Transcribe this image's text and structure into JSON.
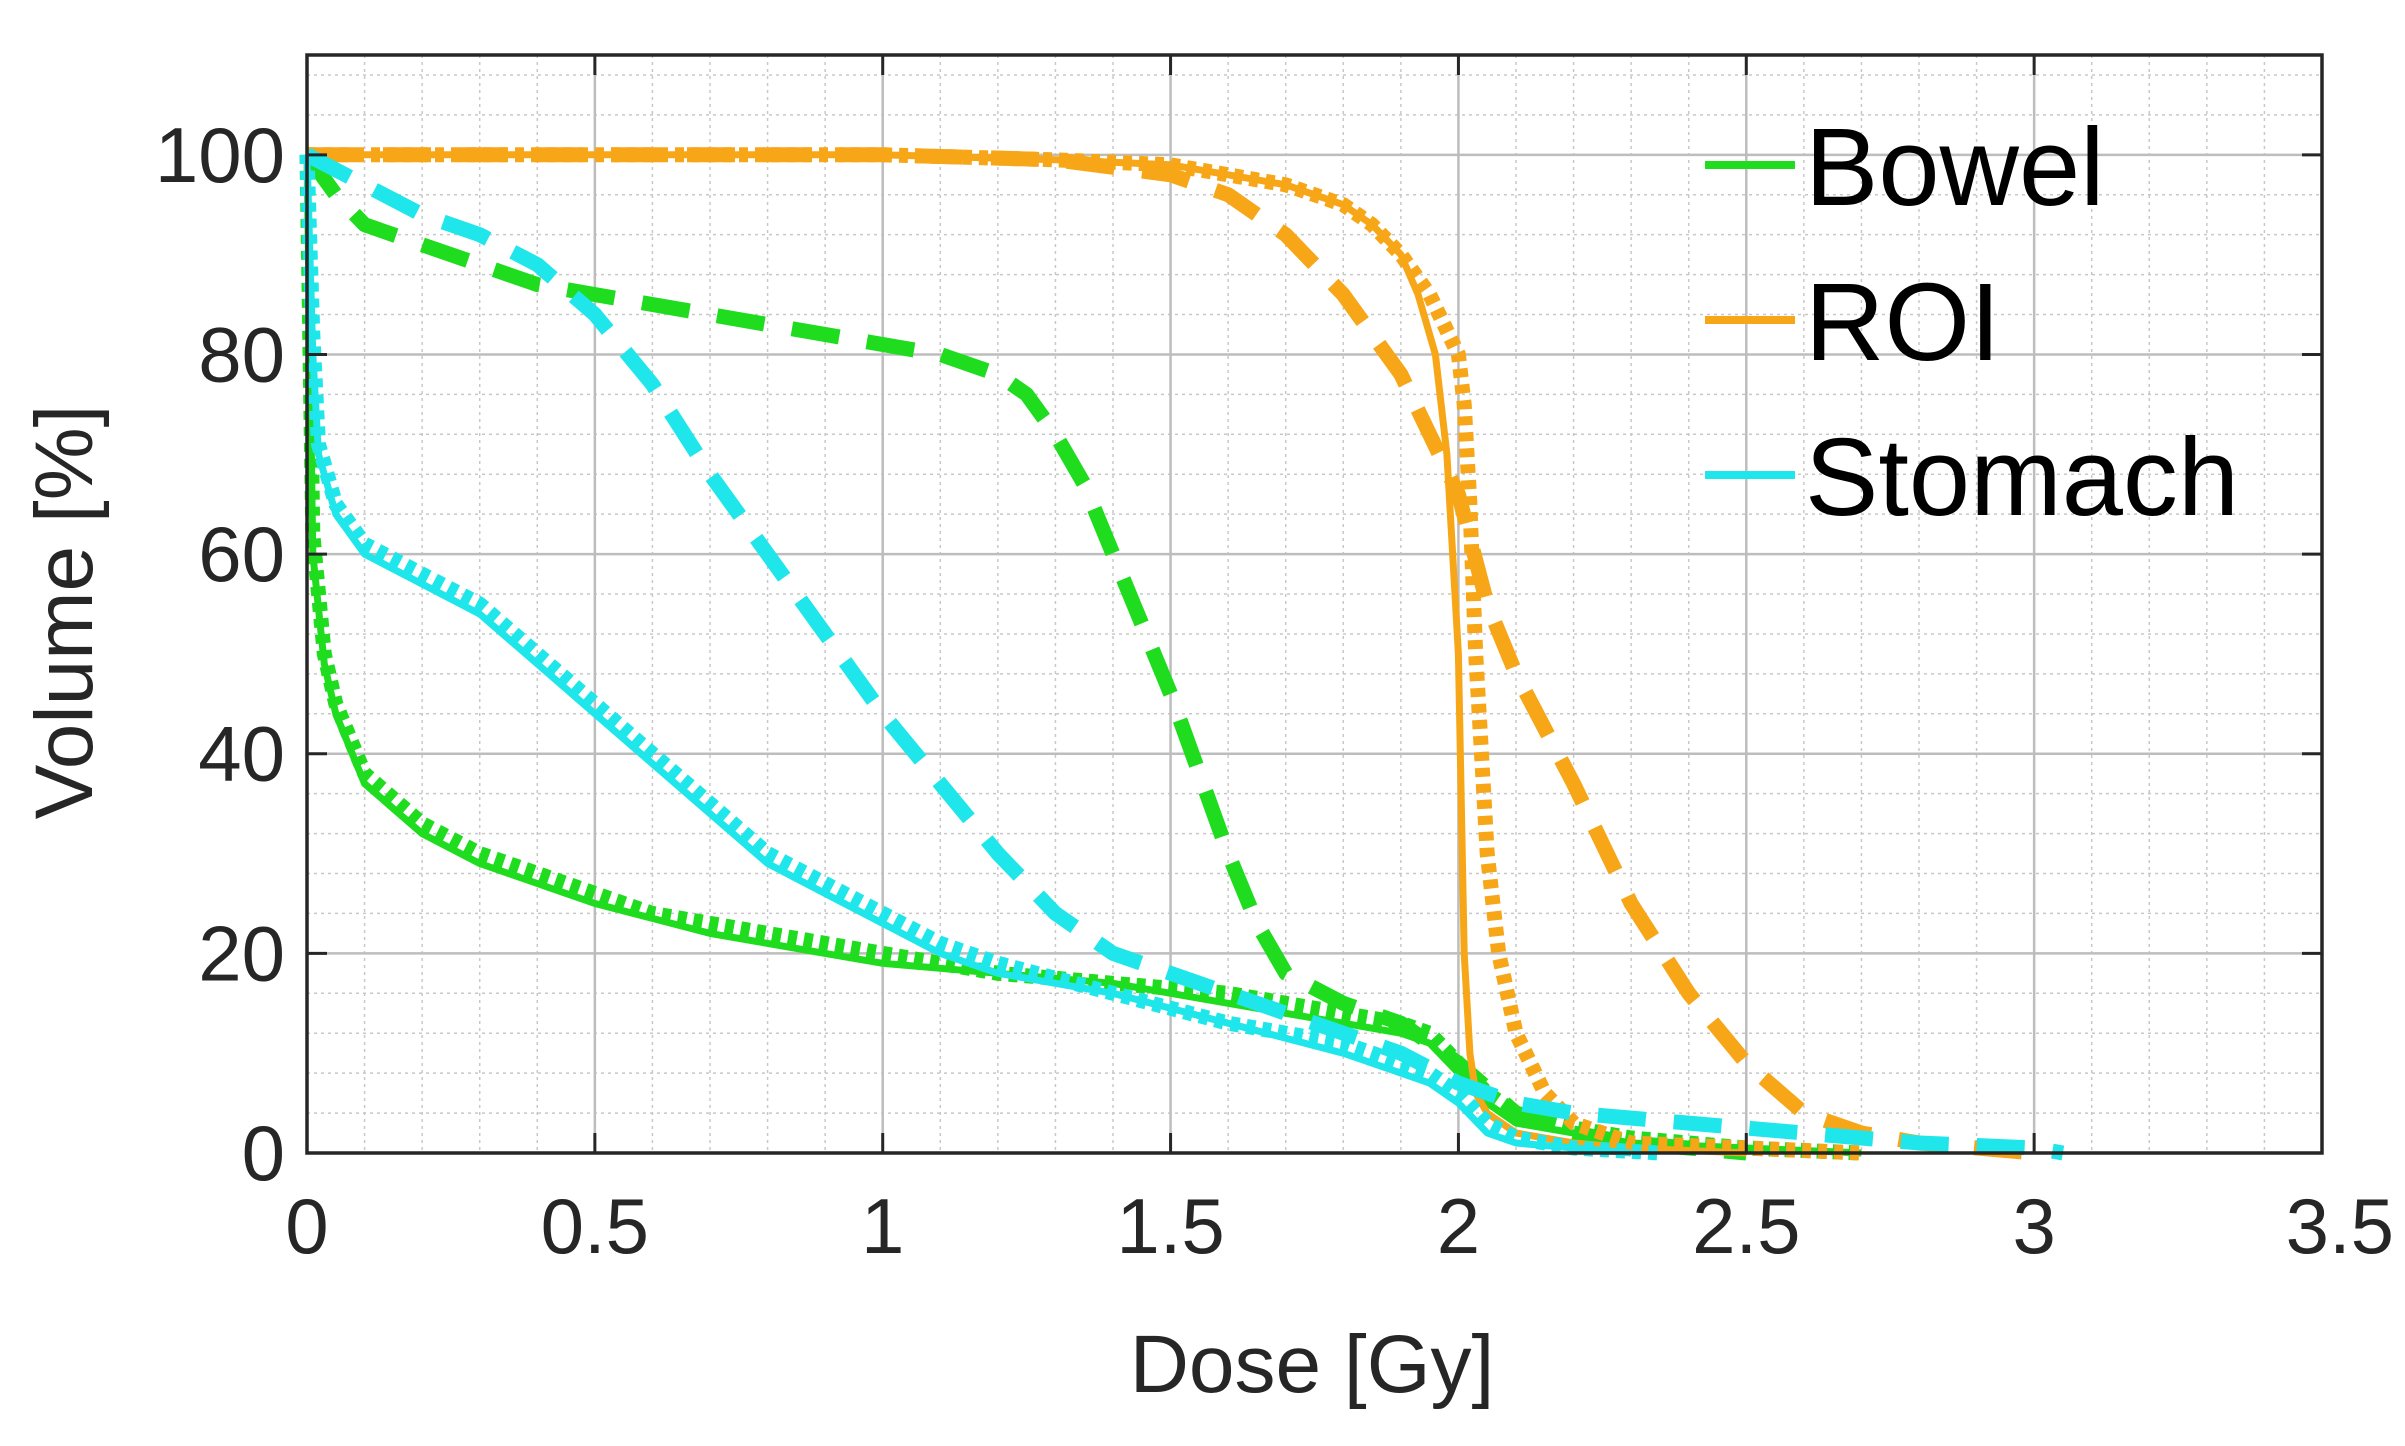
{
  "chart_data": {
    "type": "line",
    "title": "",
    "xlabel": "Dose [Gy]",
    "ylabel": "Volume [%]",
    "xlim": [
      0,
      3.5
    ],
    "ylim": [
      0,
      110
    ],
    "x_ticks": [
      0,
      0.5,
      1,
      1.5,
      2,
      2.5,
      3,
      3.5
    ],
    "x_tick_labels": [
      "0",
      "0.5",
      "1",
      "1.5",
      "2",
      "2.5",
      "3",
      "3.5"
    ],
    "y_ticks": [
      0,
      20,
      40,
      60,
      80,
      100
    ],
    "y_tick_labels": [
      "0",
      "20",
      "40",
      "60",
      "80",
      "100"
    ],
    "grid": true,
    "minor_grid": true,
    "legend": {
      "placement": "top-right",
      "entries": [
        {
          "label": "Bowel",
          "color": "#1fdc1f"
        },
        {
          "label": "ROI",
          "color": "#f7a617"
        },
        {
          "label": "Stomach",
          "color": "#1fe6ea"
        }
      ]
    },
    "series": [
      {
        "name": "Bowel",
        "style": "solid",
        "color": "#1fdc1f",
        "x": [
          0,
          0.01,
          0.03,
          0.05,
          0.1,
          0.2,
          0.3,
          0.4,
          0.5,
          0.6,
          0.7,
          0.8,
          0.9,
          1.0,
          1.2,
          1.4,
          1.5,
          1.6,
          1.7,
          1.8,
          1.9,
          1.95,
          2.0,
          2.05,
          2.1,
          2.2,
          2.3,
          2.5,
          2.7
        ],
        "y": [
          100,
          60,
          49,
          44,
          37,
          32,
          29,
          27,
          25,
          23.5,
          22,
          21,
          20,
          19,
          18,
          17,
          16,
          15,
          14,
          13,
          12,
          11,
          8,
          5,
          3,
          2,
          1,
          0.5,
          0
        ]
      },
      {
        "name": "Bowel",
        "style": "dotted",
        "color": "#1fdc1f",
        "x": [
          0,
          0.01,
          0.03,
          0.05,
          0.1,
          0.2,
          0.3,
          0.4,
          0.5,
          0.6,
          0.7,
          0.8,
          0.9,
          1.0,
          1.2,
          1.4,
          1.5,
          1.6,
          1.7,
          1.8,
          1.9,
          1.95,
          2.0,
          2.05,
          2.1,
          2.2,
          2.3,
          2.5,
          2.7
        ],
        "y": [
          100,
          62,
          50,
          45,
          38,
          33,
          30,
          28,
          26,
          24,
          23,
          22,
          21,
          20,
          18,
          17,
          16.5,
          16,
          15,
          14,
          13,
          12,
          9,
          6,
          4,
          2.5,
          1.5,
          0.5,
          0
        ]
      },
      {
        "name": "Bowel",
        "style": "dashed",
        "color": "#1fdc1f",
        "x": [
          0,
          0.05,
          0.1,
          0.2,
          0.3,
          0.4,
          0.6,
          0.8,
          1.0,
          1.1,
          1.2,
          1.25,
          1.3,
          1.35,
          1.4,
          1.5,
          1.55,
          1.6,
          1.65,
          1.7,
          1.8,
          1.9,
          2.0,
          2.1,
          2.2,
          2.3,
          2.5
        ],
        "y": [
          100,
          96,
          93,
          91,
          89,
          87,
          85,
          83,
          81,
          80,
          78,
          76,
          72,
          67,
          60,
          46,
          38,
          30,
          23,
          18,
          15,
          13,
          9,
          4,
          2,
          1,
          0
        ]
      },
      {
        "name": "ROI",
        "style": "solid",
        "color": "#f7a617",
        "x": [
          0,
          0.5,
          1.0,
          1.3,
          1.5,
          1.6,
          1.7,
          1.8,
          1.85,
          1.9,
          1.93,
          1.96,
          1.98,
          2.0,
          2.01,
          2.02,
          2.03,
          2.05,
          2.1,
          2.2,
          2.3,
          2.5
        ],
        "y": [
          100,
          100,
          100,
          99.5,
          99,
          98,
          97,
          95,
          93,
          90,
          86,
          80,
          70,
          50,
          20,
          10,
          6,
          4,
          2,
          1,
          0.5,
          0
        ]
      },
      {
        "name": "ROI",
        "style": "dotted",
        "color": "#f7a617",
        "x": [
          0,
          0.5,
          1.0,
          1.3,
          1.5,
          1.6,
          1.7,
          1.8,
          1.85,
          1.9,
          1.95,
          2.0,
          2.01,
          2.02,
          2.03,
          2.04,
          2.05,
          2.07,
          2.1,
          2.15,
          2.2,
          2.3,
          2.5,
          2.7
        ],
        "y": [
          100,
          100,
          100,
          99.5,
          99,
          98,
          97,
          95,
          93,
          90,
          86,
          80,
          75,
          65,
          50,
          40,
          30,
          20,
          12,
          6,
          3,
          1,
          0.5,
          0
        ]
      },
      {
        "name": "ROI",
        "style": "dashed",
        "color": "#f7a617",
        "x": [
          0,
          0.5,
          1.0,
          1.3,
          1.5,
          1.6,
          1.7,
          1.8,
          1.9,
          2.0,
          2.05,
          2.1,
          2.2,
          2.3,
          2.4,
          2.5,
          2.6,
          2.7,
          2.8,
          3.0
        ],
        "y": [
          100,
          100,
          100,
          99.5,
          98,
          96,
          92,
          86,
          78,
          66,
          55,
          48,
          37,
          25,
          16,
          9,
          4,
          2,
          1,
          0
        ]
      },
      {
        "name": "Stomach",
        "style": "solid",
        "color": "#1fe6ea",
        "x": [
          0,
          0.01,
          0.02,
          0.05,
          0.1,
          0.2,
          0.3,
          0.4,
          0.5,
          0.6,
          0.7,
          0.8,
          0.9,
          1.0,
          1.1,
          1.2,
          1.4,
          1.6,
          1.8,
          1.9,
          1.95,
          2.0,
          2.05,
          2.1,
          2.2,
          2.3
        ],
        "y": [
          100,
          80,
          70,
          64,
          60,
          57,
          54,
          49,
          44,
          39,
          34,
          29,
          26,
          23,
          20,
          18,
          16,
          13,
          10,
          8,
          7,
          5,
          2,
          1,
          0.5,
          0
        ]
      },
      {
        "name": "Stomach",
        "style": "dotted",
        "color": "#1fe6ea",
        "x": [
          0,
          0.01,
          0.02,
          0.05,
          0.1,
          0.2,
          0.3,
          0.4,
          0.5,
          0.6,
          0.7,
          0.8,
          0.9,
          1.0,
          1.1,
          1.2,
          1.4,
          1.6,
          1.8,
          1.9,
          1.95,
          2.0,
          2.05,
          2.1,
          2.2,
          2.35
        ],
        "y": [
          100,
          82,
          71,
          65,
          61,
          58,
          55,
          50,
          45,
          40,
          35,
          30,
          27,
          24,
          21,
          19,
          16,
          13,
          11,
          9,
          8,
          6,
          3,
          1.5,
          0.5,
          0
        ]
      },
      {
        "name": "Stomach",
        "style": "dashed",
        "color": "#1fe6ea",
        "x": [
          0,
          0.1,
          0.2,
          0.3,
          0.4,
          0.5,
          0.6,
          0.7,
          0.8,
          0.9,
          1.0,
          1.1,
          1.2,
          1.3,
          1.4,
          1.5,
          1.6,
          1.7,
          1.8,
          1.9,
          2.0,
          2.1,
          2.2,
          2.4,
          2.6,
          2.8,
          3.0,
          3.05
        ],
        "y": [
          100,
          97,
          94,
          92,
          89,
          84,
          77,
          68,
          60,
          52,
          44,
          37,
          30,
          24,
          20,
          18,
          16,
          14,
          12,
          10,
          7,
          5,
          4,
          3,
          2,
          1,
          0.5,
          0
        ]
      }
    ]
  }
}
